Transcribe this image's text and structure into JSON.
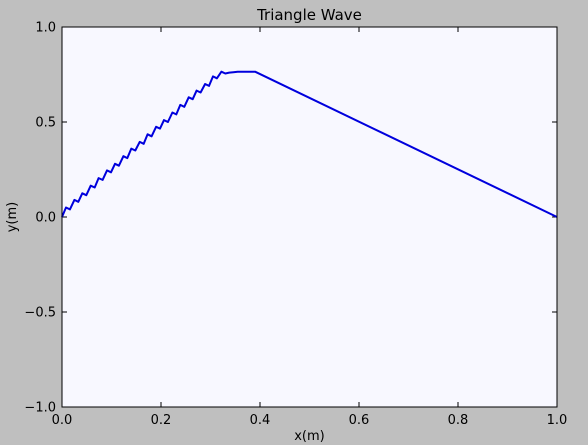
{
  "chart_data": {
    "type": "line",
    "title": "Triangle Wave",
    "xlabel": "x(m)",
    "ylabel": "y(m)",
    "xlim": [
      0.0,
      1.0
    ],
    "ylim": [
      -1.0,
      1.0
    ],
    "xticks": [
      "0.0",
      "0.2",
      "0.4",
      "0.6",
      "0.8",
      "1.0"
    ],
    "yticks": [
      "−1.0",
      "−0.5",
      "0.0",
      "0.5",
      "1.0"
    ],
    "grid": false,
    "colors": {
      "figure_bg": "#bfbfbf",
      "plot_bg": "#f8f8ff",
      "line": "#0000dd",
      "axes": "#000000"
    },
    "series": [
      {
        "x": [
          0.0,
          0.008,
          0.016,
          0.025,
          0.033,
          0.041,
          0.049,
          0.058,
          0.066,
          0.074,
          0.082,
          0.091,
          0.099,
          0.107,
          0.115,
          0.124,
          0.132,
          0.14,
          0.148,
          0.157,
          0.165,
          0.173,
          0.181,
          0.19,
          0.198,
          0.206,
          0.214,
          0.223,
          0.231,
          0.239,
          0.247,
          0.256,
          0.264,
          0.272,
          0.28,
          0.289,
          0.297,
          0.305,
          0.313,
          0.322,
          0.33,
          0.338,
          0.346,
          0.355,
          0.363,
          0.371,
          0.379,
          0.388,
          0.39,
          1.0
        ],
        "y": [
          0.0,
          0.05,
          0.04,
          0.09,
          0.08,
          0.125,
          0.115,
          0.165,
          0.155,
          0.205,
          0.195,
          0.245,
          0.235,
          0.28,
          0.27,
          0.32,
          0.31,
          0.36,
          0.35,
          0.395,
          0.385,
          0.435,
          0.425,
          0.475,
          0.465,
          0.51,
          0.5,
          0.55,
          0.54,
          0.59,
          0.58,
          0.63,
          0.62,
          0.665,
          0.655,
          0.7,
          0.69,
          0.74,
          0.73,
          0.765,
          0.755,
          0.76,
          0.762,
          0.764,
          0.764,
          0.764,
          0.764,
          0.764,
          0.765,
          0.0
        ]
      }
    ]
  }
}
